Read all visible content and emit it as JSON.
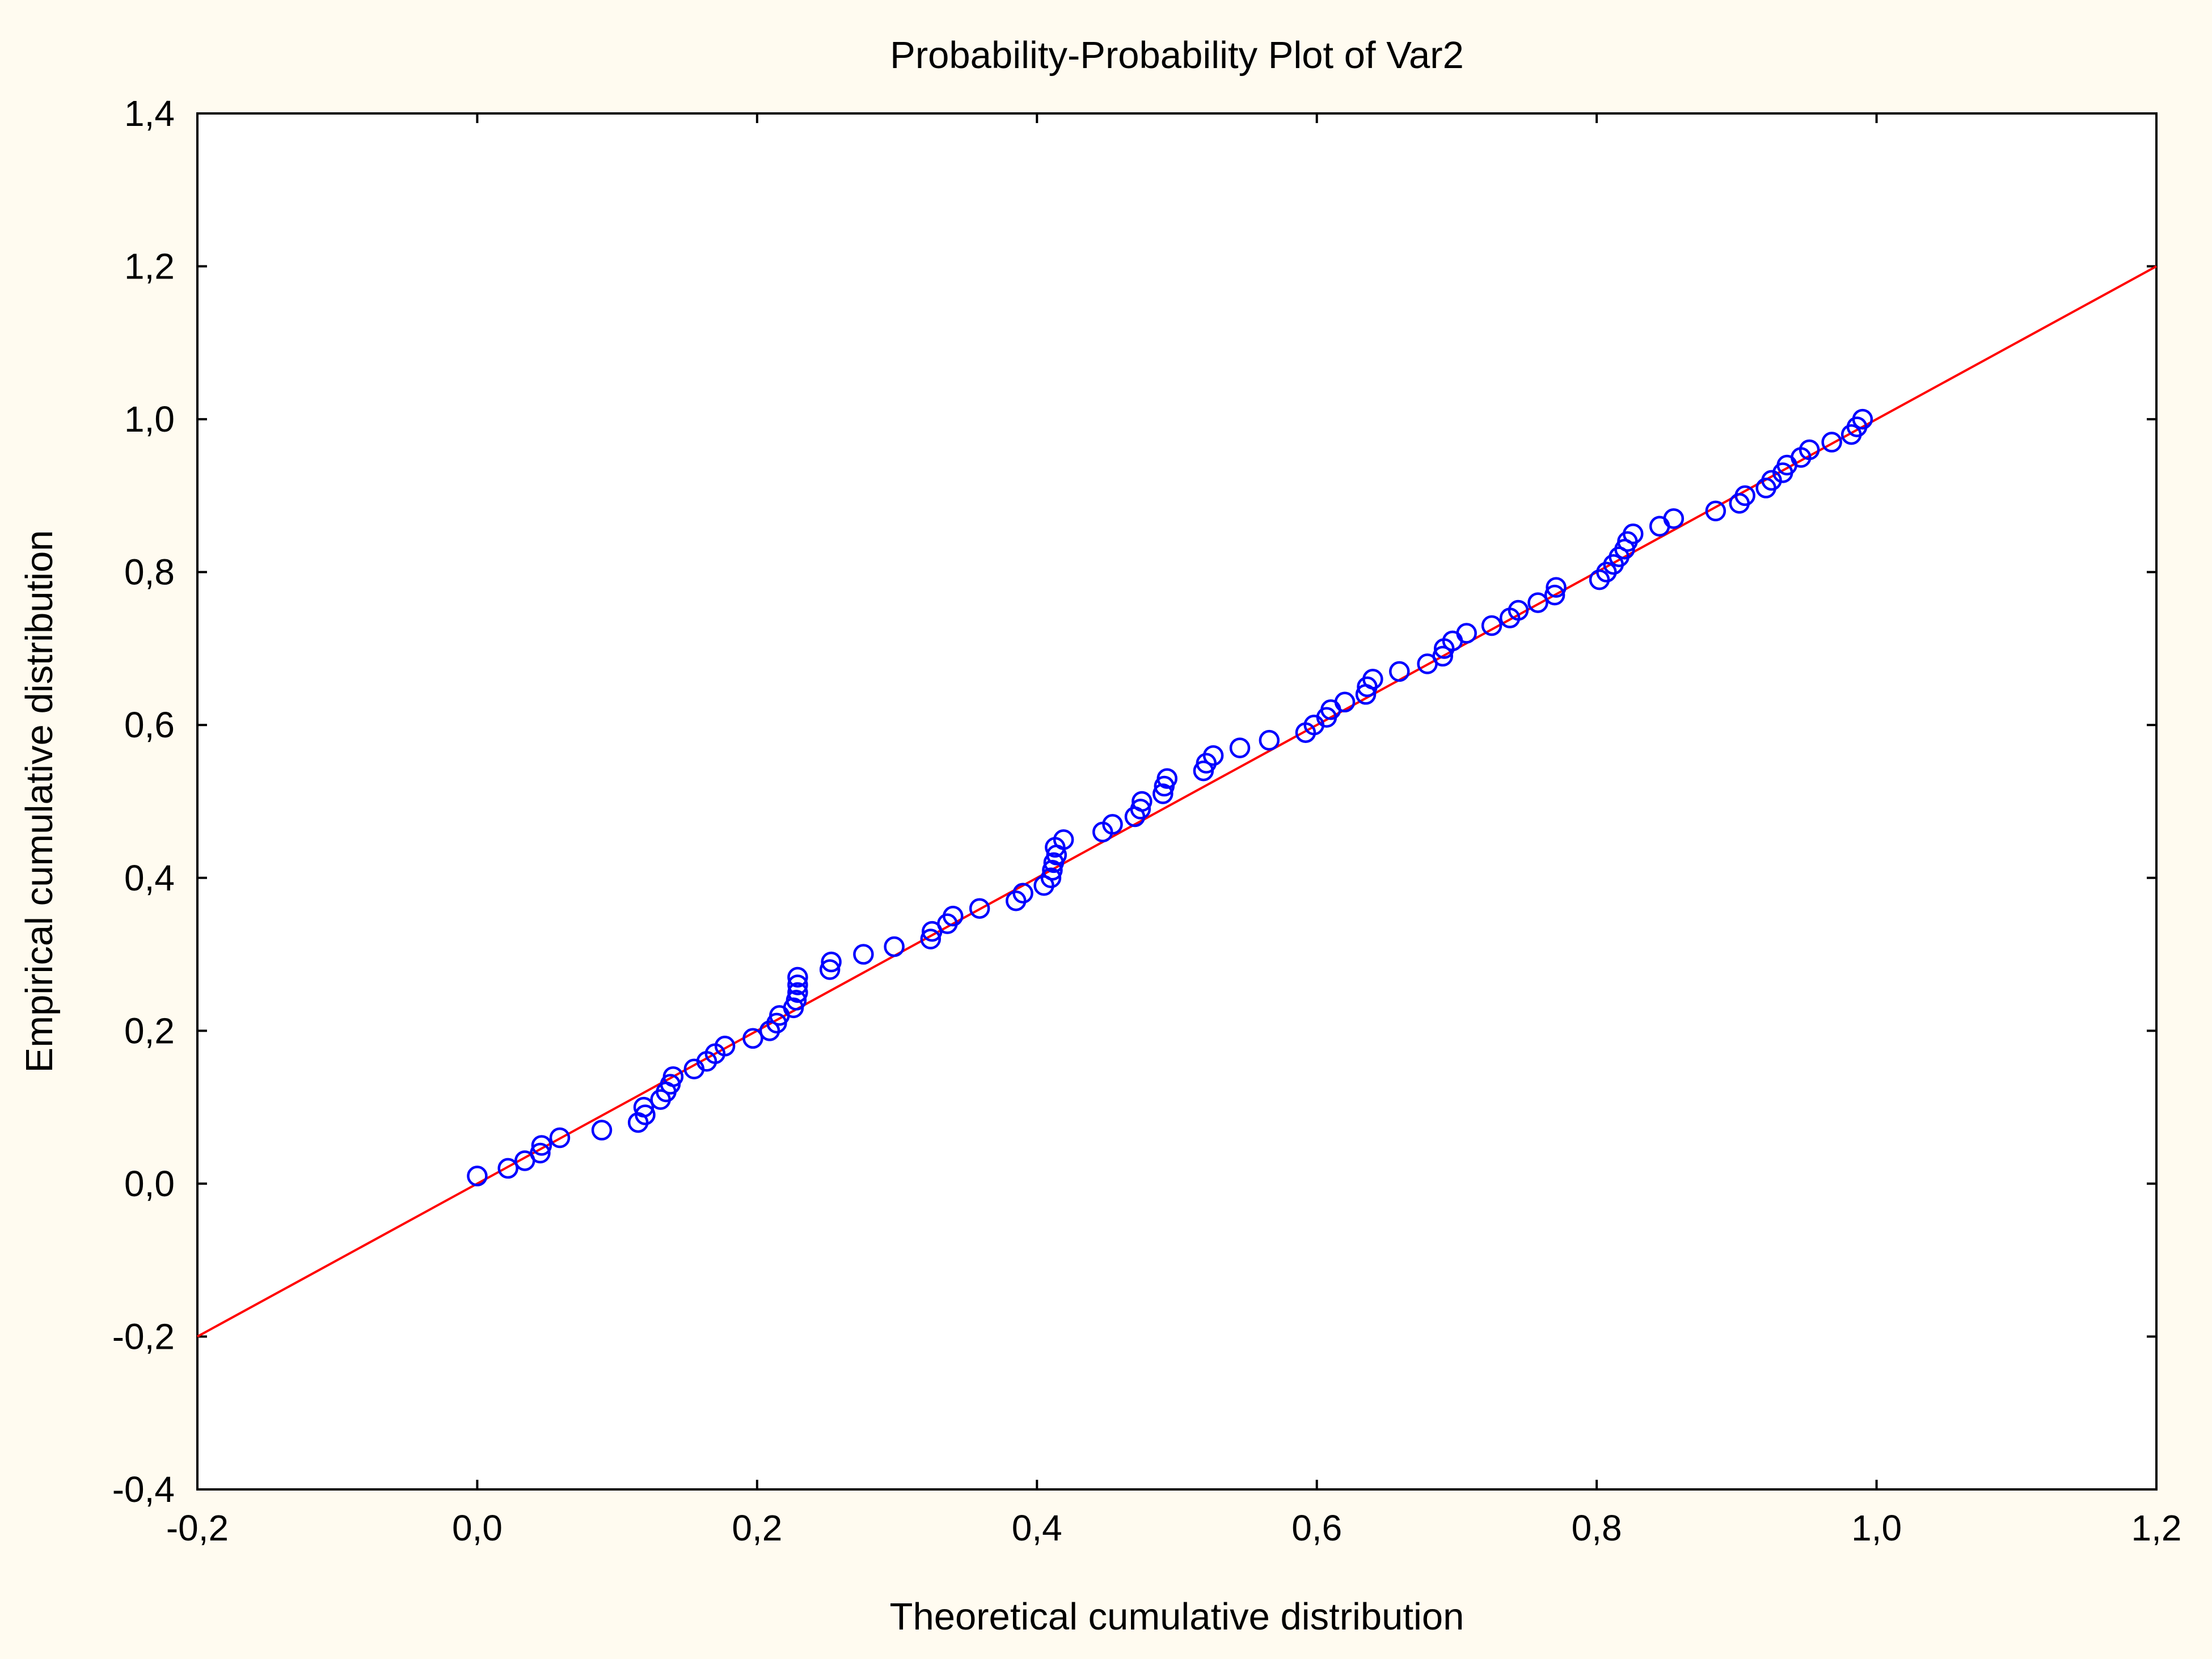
{
  "chart_data": {
    "type": "scatter",
    "title": "Probability-Probability Plot of Var2",
    "xlabel": "Theoretical cumulative distribution",
    "ylabel": "Empirical cumulative distribution",
    "xlim": [
      -0.2,
      1.2
    ],
    "ylim": [
      -0.4,
      1.4
    ],
    "xticks": [
      -0.2,
      0.0,
      0.2,
      0.4,
      0.6,
      0.8,
      1.0,
      1.2
    ],
    "xtick_labels": [
      "-0,2",
      "0,0",
      "0,2",
      "0,4",
      "0,6",
      "0,8",
      "1,0",
      "1,2"
    ],
    "yticks": [
      -0.4,
      -0.2,
      0.0,
      0.2,
      0.4,
      0.6,
      0.8,
      1.0,
      1.2,
      1.4
    ],
    "ytick_labels": [
      "-0,4",
      "-0,2",
      "0,0",
      "0,2",
      "0,4",
      "0,6",
      "0,8",
      "1,0",
      "1,2",
      "1,4"
    ],
    "grid": false,
    "colors": {
      "points": "#0000ff",
      "line": "#ff0000",
      "axes": "#000000",
      "background": "#fffbf0"
    },
    "reference_line": {
      "name": "fit line",
      "x": [
        -0.2,
        1.2
      ],
      "y": [
        -0.2,
        1.2
      ]
    },
    "series": [
      {
        "name": "Var2",
        "marker": "circle-open",
        "points": [
          [
            0.0,
            0.01
          ],
          [
            0.022,
            0.02
          ],
          [
            0.034,
            0.03
          ],
          [
            0.045,
            0.04
          ],
          [
            0.046,
            0.05
          ],
          [
            0.059,
            0.06
          ],
          [
            0.089,
            0.07
          ],
          [
            0.115,
            0.08
          ],
          [
            0.12,
            0.09
          ],
          [
            0.119,
            0.1
          ],
          [
            0.131,
            0.11
          ],
          [
            0.135,
            0.12
          ],
          [
            0.138,
            0.13
          ],
          [
            0.14,
            0.14
          ],
          [
            0.155,
            0.15
          ],
          [
            0.164,
            0.16
          ],
          [
            0.17,
            0.17
          ],
          [
            0.177,
            0.18
          ],
          [
            0.197,
            0.19
          ],
          [
            0.209,
            0.2
          ],
          [
            0.214,
            0.21
          ],
          [
            0.216,
            0.22
          ],
          [
            0.226,
            0.23
          ],
          [
            0.228,
            0.24
          ],
          [
            0.229,
            0.25
          ],
          [
            0.229,
            0.26
          ],
          [
            0.229,
            0.27
          ],
          [
            0.252,
            0.28
          ],
          [
            0.253,
            0.29
          ],
          [
            0.276,
            0.3
          ],
          [
            0.298,
            0.31
          ],
          [
            0.324,
            0.32
          ],
          [
            0.325,
            0.33
          ],
          [
            0.336,
            0.34
          ],
          [
            0.34,
            0.35
          ],
          [
            0.359,
            0.36
          ],
          [
            0.385,
            0.37
          ],
          [
            0.39,
            0.38
          ],
          [
            0.405,
            0.39
          ],
          [
            0.41,
            0.4
          ],
          [
            0.411,
            0.41
          ],
          [
            0.412,
            0.42
          ],
          [
            0.414,
            0.43
          ],
          [
            0.413,
            0.44
          ],
          [
            0.419,
            0.45
          ],
          [
            0.447,
            0.46
          ],
          [
            0.454,
            0.47
          ],
          [
            0.47,
            0.48
          ],
          [
            0.474,
            0.49
          ],
          [
            0.475,
            0.5
          ],
          [
            0.49,
            0.51
          ],
          [
            0.491,
            0.52
          ],
          [
            0.493,
            0.53
          ],
          [
            0.519,
            0.54
          ],
          [
            0.521,
            0.55
          ],
          [
            0.526,
            0.56
          ],
          [
            0.545,
            0.57
          ],
          [
            0.566,
            0.58
          ],
          [
            0.592,
            0.59
          ],
          [
            0.598,
            0.6
          ],
          [
            0.607,
            0.61
          ],
          [
            0.61,
            0.62
          ],
          [
            0.62,
            0.63
          ],
          [
            0.635,
            0.64
          ],
          [
            0.636,
            0.65
          ],
          [
            0.64,
            0.66
          ],
          [
            0.659,
            0.67
          ],
          [
            0.679,
            0.68
          ],
          [
            0.69,
            0.69
          ],
          [
            0.691,
            0.7
          ],
          [
            0.697,
            0.71
          ],
          [
            0.707,
            0.72
          ],
          [
            0.725,
            0.73
          ],
          [
            0.738,
            0.74
          ],
          [
            0.744,
            0.75
          ],
          [
            0.758,
            0.76
          ],
          [
            0.77,
            0.77
          ],
          [
            0.771,
            0.78
          ],
          [
            0.802,
            0.79
          ],
          [
            0.807,
            0.8
          ],
          [
            0.812,
            0.81
          ],
          [
            0.816,
            0.82
          ],
          [
            0.82,
            0.83
          ],
          [
            0.822,
            0.84
          ],
          [
            0.826,
            0.85
          ],
          [
            0.845,
            0.86
          ],
          [
            0.855,
            0.87
          ],
          [
            0.885,
            0.88
          ],
          [
            0.902,
            0.89
          ],
          [
            0.906,
            0.9
          ],
          [
            0.921,
            0.91
          ],
          [
            0.925,
            0.92
          ],
          [
            0.933,
            0.93
          ],
          [
            0.936,
            0.94
          ],
          [
            0.946,
            0.95
          ],
          [
            0.952,
            0.96
          ],
          [
            0.968,
            0.97
          ],
          [
            0.982,
            0.98
          ],
          [
            0.986,
            0.99
          ],
          [
            0.99,
            1.0
          ]
        ]
      }
    ]
  }
}
